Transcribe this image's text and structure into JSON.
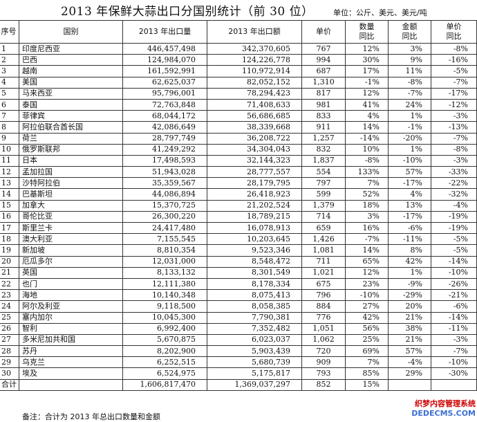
{
  "title": "2013 年保鲜大蒜出口分国别统计（前 30 位）",
  "unit": "单位：公斤、美元、美元/吨",
  "headers": [
    "序号",
    "国别",
    "2013 年出口量",
    "2013 年出口额",
    "单价",
    "数量\n同比",
    "金额\n同比",
    "单价\n同比"
  ],
  "rows": [
    [
      "1",
      "印度尼西亚",
      "446,457,498",
      "342,370,605",
      "767",
      "12%",
      "3%",
      "-8%"
    ],
    [
      "2",
      "巴西",
      "124,984,070",
      "124,226,778",
      "994",
      "30%",
      "9%",
      "-16%"
    ],
    [
      "3",
      "越南",
      "161,592,991",
      "110,972,914",
      "687",
      "17%",
      "11%",
      "-5%"
    ],
    [
      "4",
      "美国",
      "62,625,037",
      "82,052,152",
      "1,310",
      "-1%",
      "-8%",
      "-7%"
    ],
    [
      "5",
      "马来西亚",
      "95,796,001",
      "78,294,423",
      "817",
      "12%",
      "-7%",
      "-17%"
    ],
    [
      "6",
      "泰国",
      "72,763,848",
      "71,408,633",
      "981",
      "41%",
      "24%",
      "-12%"
    ],
    [
      "7",
      "菲律宾",
      "68,044,172",
      "56,686,685",
      "833",
      "4%",
      "1%",
      "-3%"
    ],
    [
      "8",
      "阿拉伯联合酋长国",
      "42,086,649",
      "38,339,668",
      "911",
      "14%",
      "-1%",
      "-13%"
    ],
    [
      "9",
      "荷兰",
      "28,797,749",
      "36,208,722",
      "1,257",
      "-14%",
      "-20%",
      "-7%"
    ],
    [
      "10",
      "俄罗斯联邦",
      "41,249,292",
      "34,304,043",
      "832",
      "10%",
      "1%",
      "-8%"
    ],
    [
      "11",
      "日本",
      "17,498,593",
      "32,144,323",
      "1,837",
      "-8%",
      "-10%",
      "-3%"
    ],
    [
      "12",
      "孟加拉国",
      "51,943,028",
      "28,777,557",
      "554",
      "133%",
      "57%",
      "-33%"
    ],
    [
      "13",
      "沙特阿拉伯",
      "35,359,567",
      "28,179,795",
      "797",
      "7%",
      "-17%",
      "-22%"
    ],
    [
      "14",
      "巴基斯坦",
      "44,086,894",
      "26,418,923",
      "599",
      "52%",
      "4%",
      "-32%"
    ],
    [
      "15",
      "加拿大",
      "15,370,725",
      "21,202,524",
      "1,379",
      "18%",
      "13%",
      "-4%"
    ],
    [
      "16",
      "哥伦比亚",
      "26,300,220",
      "18,789,215",
      "714",
      "3%",
      "-17%",
      "-19%"
    ],
    [
      "17",
      "斯里兰卡",
      "24,417,480",
      "16,078,913",
      "659",
      "16%",
      "-6%",
      "-19%"
    ],
    [
      "18",
      "澳大利亚",
      "7,155,545",
      "10,203,645",
      "1,426",
      "-7%",
      "-11%",
      "-5%"
    ],
    [
      "19",
      "新加坡",
      "8,810,354",
      "9,523,346",
      "1,081",
      "14%",
      "8%",
      "-5%"
    ],
    [
      "20",
      "厄瓜多尔",
      "12,031,000",
      "8,548,472",
      "711",
      "65%",
      "42%",
      "-14%"
    ],
    [
      "21",
      "英国",
      "8,133,132",
      "8,301,549",
      "1,021",
      "12%",
      "1%",
      "-10%"
    ],
    [
      "22",
      "也门",
      "12,111,380",
      "8,178,334",
      "675",
      "23%",
      "-9%",
      "-26%"
    ],
    [
      "23",
      "海地",
      "10,140,348",
      "8,075,413",
      "796",
      "-10%",
      "-29%",
      "-21%"
    ],
    [
      "24",
      "阿尔及利亚",
      "9,118,500",
      "8,058,385",
      "884",
      "27%",
      "20%",
      "-6%"
    ],
    [
      "25",
      "塞内加尔",
      "10,045,300",
      "7,790,381",
      "776",
      "42%",
      "21%",
      "-14%"
    ],
    [
      "26",
      "智利",
      "6,992,400",
      "7,352,482",
      "1,051",
      "56%",
      "38%",
      "-11%"
    ],
    [
      "27",
      "多米尼加共和国",
      "5,670,875",
      "6,023,037",
      "1,062",
      "25%",
      "21%",
      "-3%"
    ],
    [
      "28",
      "苏丹",
      "8,202,900",
      "5,903,439",
      "720",
      "69%",
      "57%",
      "-7%"
    ],
    [
      "29",
      "乌克兰",
      "6,252,515",
      "5,680,739",
      "909",
      "7%",
      "-4%",
      "-10%"
    ],
    [
      "30",
      "埃及",
      "6,524,975",
      "5,175,817",
      "793",
      "85%",
      "29%",
      "-30%"
    ]
  ],
  "total": [
    "合计",
    "",
    "1,606,817,470",
    "1,369,037,297",
    "852",
    "15%",
    "",
    ""
  ],
  "note": "备注：合计为 2013 年总出口数量和金额",
  "watermark": {
    "line1": "织梦内容管理系统",
    "line2": "DEDECMS.COM"
  }
}
